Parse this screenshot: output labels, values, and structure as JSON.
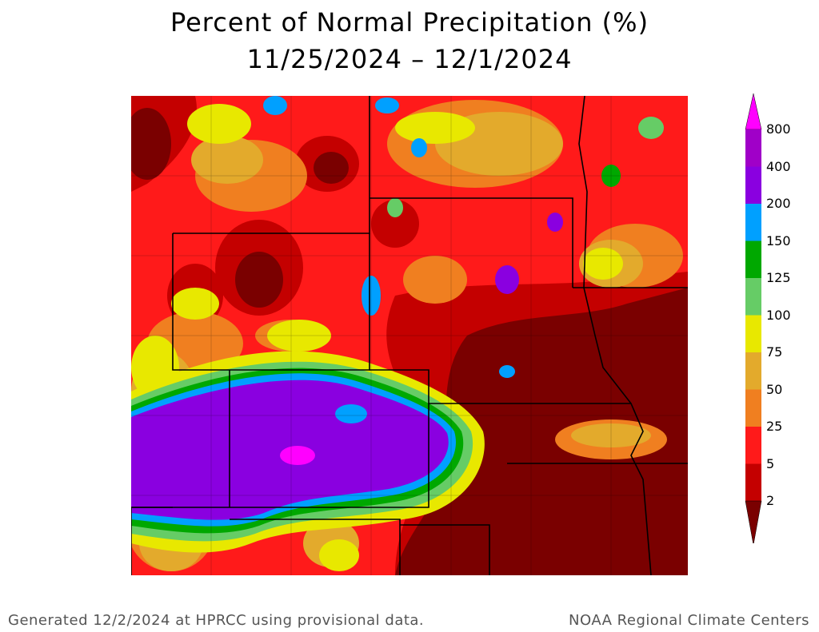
{
  "title": {
    "line1": "Percent of Normal Precipitation (%)",
    "line2": "11/25/2024 – 12/1/2024"
  },
  "legend": {
    "levels": [
      {
        "label": "2",
        "color": "#7a0000"
      },
      {
        "label": "5",
        "color": "#c40000"
      },
      {
        "label": "25",
        "color": "#ff1a1a"
      },
      {
        "label": "50",
        "color": "#f07f20"
      },
      {
        "label": "75",
        "color": "#e3aa2c"
      },
      {
        "label": "100",
        "color": "#e8e800"
      },
      {
        "label": "125",
        "color": "#66cc66"
      },
      {
        "label": "150",
        "color": "#00a800"
      },
      {
        "label": "200",
        "color": "#00a0ff"
      },
      {
        "label": "400",
        "color": "#8a00e0"
      },
      {
        "label": "800",
        "color": "#a000c8"
      }
    ],
    "top_arrow_color": "#ff00ff",
    "bottom_arrow_color": "#7a0000"
  },
  "footer": {
    "left": "Generated 12/2/2024 at HPRCC using provisional data.",
    "right": "NOAA Regional Climate Centers"
  }
}
